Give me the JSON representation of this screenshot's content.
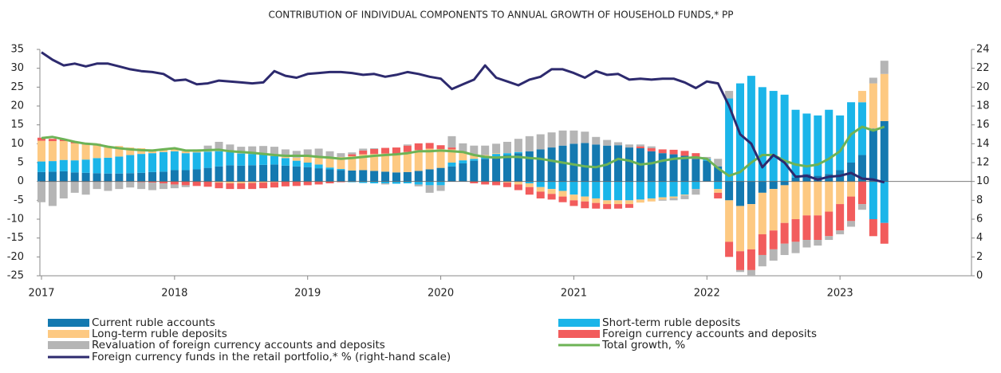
{
  "chart_data": {
    "type": "bar",
    "title": "CONTRIBUTION OF INDIVIDUAL COMPONENTS TO ANNUAL GROWTH OF HOUSEHOLD FUNDS,* PP",
    "categories": [
      "2017",
      null,
      null,
      null,
      null,
      null,
      null,
      null,
      null,
      null,
      null,
      null,
      "2018",
      null,
      null,
      null,
      null,
      null,
      null,
      null,
      null,
      null,
      null,
      null,
      "2019",
      null,
      null,
      null,
      null,
      null,
      null,
      null,
      null,
      null,
      null,
      null,
      "2020",
      null,
      null,
      null,
      null,
      null,
      null,
      null,
      null,
      null,
      null,
      null,
      "2021",
      null,
      null,
      null,
      null,
      null,
      null,
      null,
      null,
      null,
      null,
      null,
      "2022",
      null,
      null,
      null,
      null,
      null,
      null,
      null,
      null,
      null,
      null,
      null,
      "2023",
      null,
      null,
      null,
      null
    ],
    "series": [
      {
        "name": "Current ruble accounts",
        "type": "bar",
        "color": "#1479b0",
        "values": [
          2.5,
          2.6,
          2.7,
          2.4,
          2.3,
          2.2,
          2.1,
          2.1,
          2.2,
          2.3,
          2.5,
          2.6,
          3.0,
          3.0,
          3.2,
          3.6,
          4.0,
          4.3,
          4.2,
          4.3,
          4.4,
          4.5,
          4.2,
          4.0,
          3.8,
          3.5,
          3.2,
          3.0,
          2.9,
          3.0,
          2.8,
          2.6,
          2.4,
          2.5,
          2.8,
          3.2,
          3.6,
          4.0,
          4.8,
          5.5,
          6.0,
          6.5,
          7.0,
          7.5,
          8.0,
          8.5,
          9.0,
          9.5,
          10.0,
          10.2,
          9.8,
          9.5,
          9.6,
          9.0,
          8.8,
          8.0,
          7.5,
          7.2,
          6.8,
          6.0,
          5.5,
          4.0,
          -5.0,
          -6.5,
          -6.0,
          -3.0,
          -2.0,
          -1.0,
          1.0,
          2.0,
          1.5,
          2.0,
          3.0,
          5.0,
          7.0,
          14.0,
          16.0
        ]
      },
      {
        "name": "Short-term ruble deposits",
        "type": "bar",
        "color": "#1bb5e9",
        "values": [
          2.8,
          2.8,
          3.0,
          3.2,
          3.5,
          4.0,
          4.2,
          4.5,
          4.8,
          5.0,
          5.0,
          5.2,
          5.0,
          4.5,
          4.5,
          4.3,
          4.0,
          3.5,
          3.2,
          3.0,
          2.8,
          2.2,
          2.0,
          1.5,
          1.2,
          1.0,
          0.5,
          0.3,
          -0.2,
          -0.4,
          -0.5,
          -0.5,
          -0.6,
          -0.5,
          -0.8,
          -1.0,
          -1.0,
          1.0,
          0.8,
          0.5,
          0.5,
          0.8,
          0.5,
          0.3,
          -0.5,
          -1.5,
          -2.0,
          -2.5,
          -3.5,
          -4.0,
          -4.5,
          -5.0,
          -5.0,
          -5.0,
          -4.8,
          -4.5,
          -4.2,
          -4.0,
          -3.5,
          -2.0,
          0.5,
          -2.0,
          22.0,
          26.0,
          28.0,
          25.0,
          24.0,
          23.0,
          18.0,
          16.0,
          16.0,
          17.0,
          14.5,
          16.0,
          14.0,
          -10.0,
          -11.0
        ]
      },
      {
        "name": "Long-term ruble deposits",
        "type": "bar",
        "color": "#fdc982",
        "values": [
          5.5,
          5.3,
          5.0,
          4.5,
          4.0,
          3.6,
          3.0,
          2.8,
          2.0,
          1.5,
          1.0,
          0.8,
          0.5,
          0.5,
          0.3,
          0.1,
          -0.3,
          -0.5,
          -0.5,
          -0.4,
          -0.3,
          -0.2,
          0.3,
          0.8,
          1.5,
          2.0,
          2.8,
          3.2,
          3.8,
          4.2,
          4.5,
          4.8,
          5.0,
          5.3,
          5.5,
          5.5,
          5.0,
          3.5,
          2.0,
          1.0,
          0.5,
          0.2,
          -0.3,
          -0.8,
          -1.0,
          -1.2,
          -1.3,
          -1.5,
          -1.5,
          -1.3,
          -1.2,
          -1.0,
          -1.0,
          -1.0,
          -0.8,
          -0.8,
          -0.6,
          -0.4,
          -0.2,
          0,
          0,
          -1.0,
          -11.0,
          -12.0,
          -12.0,
          -11.0,
          -11.0,
          -10.0,
          -10.0,
          -9.0,
          -9.0,
          -8.0,
          -6.0,
          -4.0,
          3.0,
          12.0,
          12.5
        ]
      },
      {
        "name": "Foreign currency accounts and deposits",
        "type": "bar",
        "color": "#f25c5c",
        "values": [
          0.8,
          0.6,
          0.5,
          0.4,
          0.3,
          0.2,
          0,
          0,
          -0.1,
          -0.2,
          -0.3,
          -0.5,
          -0.8,
          -1.0,
          -1.2,
          -1.4,
          -1.5,
          -1.5,
          -1.5,
          -1.6,
          -1.5,
          -1.4,
          -1.3,
          -1.2,
          -1.0,
          -0.8,
          -0.5,
          -0.2,
          0.5,
          1.0,
          1.3,
          1.5,
          1.6,
          1.7,
          1.8,
          1.5,
          1.0,
          0.5,
          0,
          -0.5,
          -0.8,
          -1.0,
          -1.2,
          -1.5,
          -2.0,
          -1.8,
          -1.5,
          -1.5,
          -1.5,
          -1.8,
          -1.5,
          -1.3,
          -1.2,
          -1.0,
          0.5,
          0.8,
          1.0,
          1.2,
          1.3,
          1.5,
          0,
          -1.5,
          -4.0,
          -5.0,
          -5.5,
          -5.5,
          -5.0,
          -5.5,
          -6.0,
          -6.5,
          -6.5,
          -6.5,
          -7.0,
          -6.5,
          -6.0,
          -4.5,
          -5.5
        ]
      },
      {
        "name": "Revaluation of foreign currency accounts and deposits",
        "type": "bar",
        "color": "#b5b5b5",
        "values": [
          -5.5,
          -6.5,
          -4.5,
          -3.0,
          -3.5,
          -2.0,
          -2.5,
          -2.0,
          -1.5,
          -1.8,
          -2.0,
          -1.5,
          -1.0,
          -0.5,
          0.5,
          1.5,
          2.5,
          2.0,
          1.8,
          2.0,
          2.2,
          2.5,
          2.0,
          1.8,
          2.0,
          2.2,
          1.5,
          1.0,
          0.5,
          0.5,
          0.2,
          -0.3,
          0,
          0.3,
          -0.5,
          -2.0,
          -1.5,
          3.0,
          2.5,
          2.5,
          2.5,
          2.5,
          3.0,
          3.5,
          4.0,
          4.0,
          4.0,
          4.0,
          3.5,
          3.0,
          2.0,
          1.5,
          0.8,
          0.8,
          0.5,
          0.5,
          -0.3,
          -0.6,
          -1.0,
          -1.5,
          0.5,
          2.0,
          2.0,
          -0.5,
          -1.5,
          -3.0,
          -3.0,
          -3.0,
          -3.0,
          -2.0,
          -1.5,
          -1.0,
          -1.0,
          -1.5,
          -1.5,
          1.5,
          3.5
        ]
      },
      {
        "name": "Total growth, %",
        "type": "line",
        "color": "#6db356",
        "values": [
          11.5,
          11.8,
          11.2,
          10.5,
          10.0,
          9.8,
          9.2,
          8.8,
          8.5,
          8.3,
          8.2,
          8.5,
          8.8,
          8.2,
          8.2,
          8.3,
          8.4,
          8.0,
          7.8,
          7.6,
          7.3,
          7.0,
          6.8,
          6.8,
          6.8,
          6.5,
          6.3,
          6.0,
          6.2,
          6.5,
          6.8,
          7.0,
          7.2,
          7.5,
          8.0,
          8.0,
          8.2,
          8.0,
          7.8,
          7.0,
          6.5,
          6.3,
          6.5,
          6.5,
          6.2,
          6.0,
          5.5,
          5.0,
          4.5,
          4.0,
          3.8,
          4.5,
          6.0,
          5.5,
          4.5,
          4.8,
          5.5,
          6.0,
          6.2,
          6.4,
          6.0,
          3.5,
          1.5,
          2.5,
          5.0,
          7.0,
          7.0,
          5.5,
          4.5,
          4.0,
          4.5,
          6.0,
          8.0,
          12.5,
          14.5,
          13.5,
          14.5
        ]
      },
      {
        "name": "Foreign currency funds in the retail portfolio,* % (right-hand scale)",
        "type": "line",
        "axis": "y2",
        "color": "#2d2a6e",
        "values": [
          23.7,
          22.9,
          22.3,
          22.5,
          22.2,
          22.5,
          22.5,
          22.2,
          21.9,
          21.7,
          21.6,
          21.4,
          20.7,
          20.8,
          20.3,
          20.4,
          20.7,
          20.6,
          20.5,
          20.4,
          20.5,
          21.7,
          21.2,
          21.0,
          21.4,
          21.5,
          21.6,
          21.6,
          21.5,
          21.3,
          21.4,
          21.1,
          21.3,
          21.6,
          21.4,
          21.1,
          20.9,
          19.8,
          20.3,
          20.8,
          22.3,
          21.0,
          20.6,
          20.2,
          20.8,
          21.1,
          21.9,
          21.9,
          21.5,
          21.0,
          21.7,
          21.3,
          21.4,
          20.8,
          20.9,
          20.8,
          20.9,
          20.9,
          20.5,
          19.9,
          20.6,
          20.4,
          18.0,
          15.0,
          14.0,
          11.5,
          12.8,
          12.0,
          10.5,
          10.6,
          10.2,
          10.5,
          10.6,
          10.9,
          10.3,
          10.2,
          9.9
        ]
      }
    ],
    "ylim": [
      -25,
      35
    ],
    "yticks": [
      -25,
      -20,
      -15,
      -10,
      -5,
      0,
      5,
      10,
      15,
      20,
      25,
      30,
      35
    ],
    "y2lim": [
      0,
      24
    ],
    "y2ticks": [
      0,
      2,
      4,
      6,
      8,
      10,
      12,
      14,
      16,
      18,
      20,
      22,
      24
    ]
  }
}
